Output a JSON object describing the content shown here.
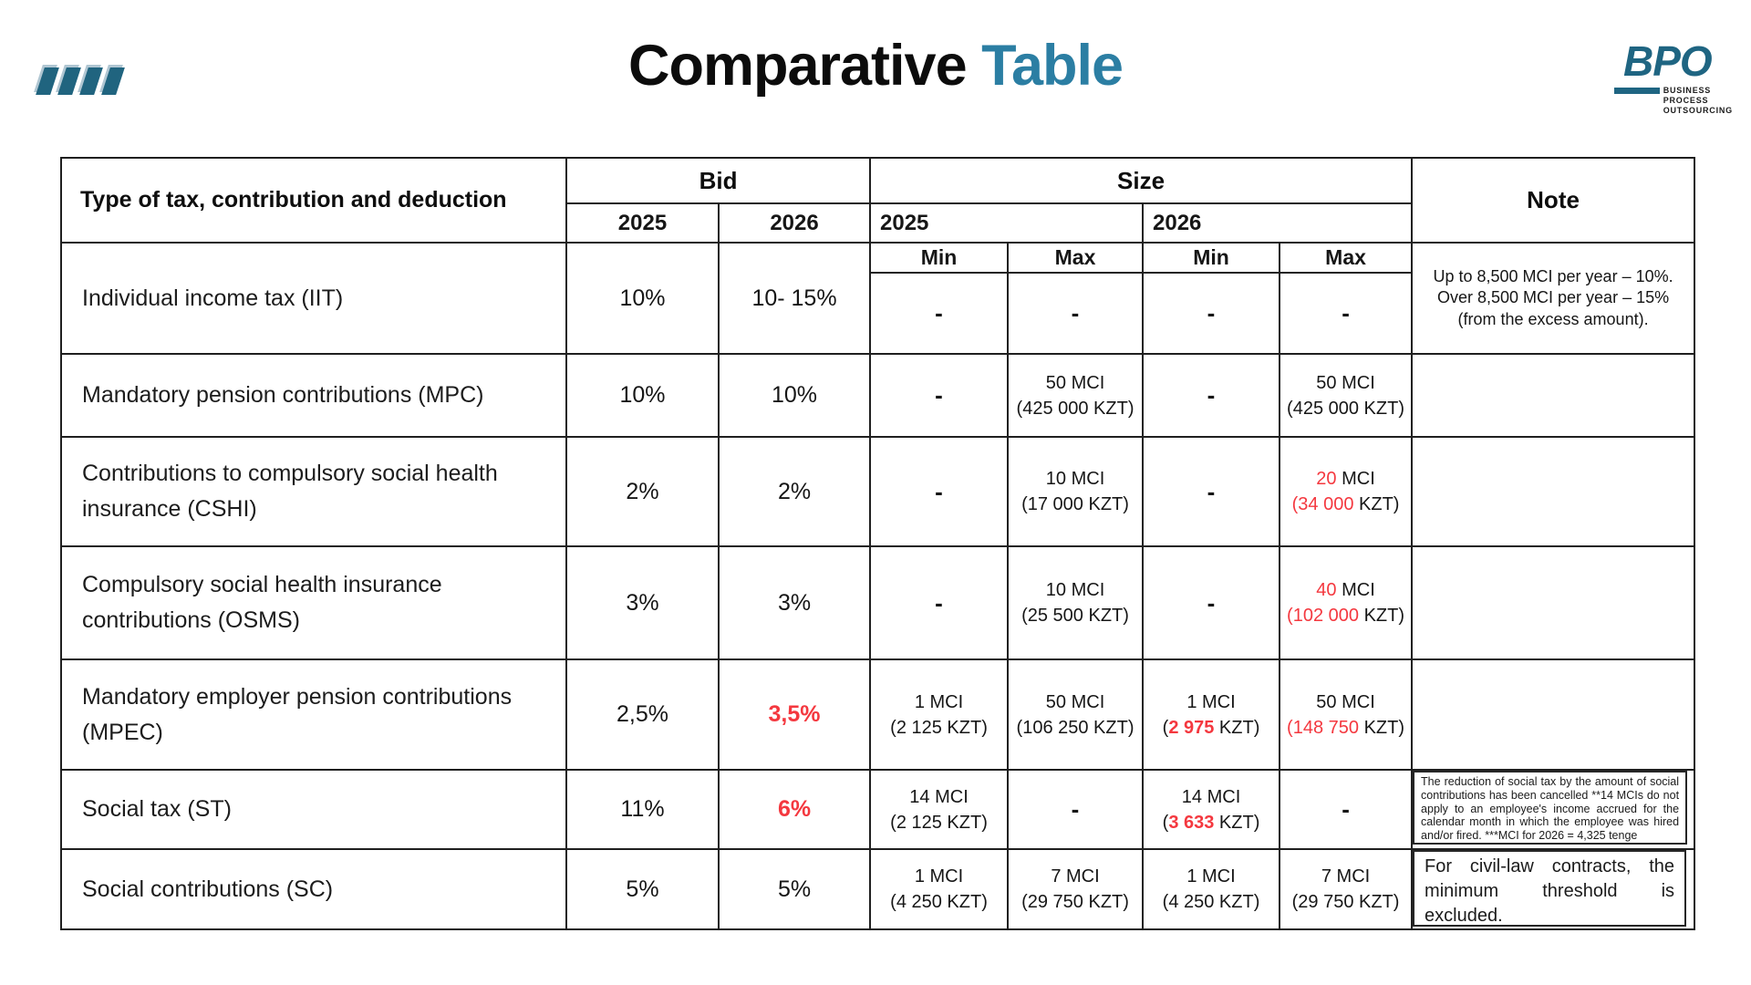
{
  "page": {
    "title_black": "Comparative",
    "title_accent": "Table"
  },
  "brand": {
    "logo_text": "BPO",
    "logo_line1": "BUSINESS",
    "logo_line2": "PROCESS",
    "logo_line3": "OUTSOURCING"
  },
  "colors": {
    "accent_teal": "#2b7ea3",
    "brand_teal": "#1f6582",
    "highlight_red": "#f4383f"
  },
  "table": {
    "headers": {
      "type": "Type of tax, contribution and deduction",
      "bid": "Bid",
      "size": "Size",
      "note": "Note",
      "bid_2025": "2025",
      "bid_2026": "2026",
      "size_2025": "2025",
      "size_2026": "2026",
      "min_1": "Min",
      "max_1": "Max",
      "min_2": "Min",
      "max_2": "Max"
    },
    "rows": [
      {
        "label": "Individual income tax (IIT)",
        "bid2025": [
          [
            {
              "t": "10%"
            }
          ]
        ],
        "bid2026": [
          [
            {
              "t": "10- 15%"
            }
          ]
        ],
        "min25": [
          [
            {
              "t": "-",
              "d": true
            }
          ]
        ],
        "max25": [
          [
            {
              "t": "-",
              "d": true
            }
          ]
        ],
        "min26": [
          [
            {
              "t": "-",
              "d": true
            }
          ]
        ],
        "max26": [
          [
            {
              "t": "-",
              "d": true
            }
          ]
        ],
        "note": "Up to 8,500 MCI per year – 10%. Over 8,500 MCI per year – 15% (from the excess amount)."
      },
      {
        "label": "Mandatory pension contributions (MPC)",
        "bid2025": [
          [
            {
              "t": "10%"
            }
          ]
        ],
        "bid2026": [
          [
            {
              "t": "10%"
            }
          ]
        ],
        "min25": [
          [
            {
              "t": "-",
              "d": true
            }
          ]
        ],
        "max25": [
          [
            {
              "t": "50 MCI"
            }
          ],
          [
            {
              "t": "(425 000 KZT)"
            }
          ]
        ],
        "min26": [
          [
            {
              "t": "-",
              "d": true
            }
          ]
        ],
        "max26": [
          [
            {
              "t": "50 MCI"
            }
          ],
          [
            {
              "t": "(425 000 KZT)"
            }
          ]
        ],
        "note": ""
      },
      {
        "label": "Contributions to compulsory social health insurance (CSHI)",
        "bid2025": [
          [
            {
              "t": "2%"
            }
          ]
        ],
        "bid2026": [
          [
            {
              "t": "2%"
            }
          ]
        ],
        "min25": [
          [
            {
              "t": "-",
              "d": true
            }
          ]
        ],
        "max25": [
          [
            {
              "t": "10 MCI"
            }
          ],
          [
            {
              "t": "(17 000 KZT)"
            }
          ]
        ],
        "min26": [
          [
            {
              "t": "-",
              "d": true
            }
          ]
        ],
        "max26": [
          [
            {
              "t": "20",
              "c": "red"
            },
            {
              "t": " MCI"
            }
          ],
          [
            {
              "t": "(34 000",
              "c": "red"
            },
            {
              "t": " KZT)"
            }
          ]
        ],
        "note": ""
      },
      {
        "label": "Compulsory social health insurance contributions (OSMS)",
        "bid2025": [
          [
            {
              "t": "3%"
            }
          ]
        ],
        "bid2026": [
          [
            {
              "t": "3%"
            }
          ]
        ],
        "min25": [
          [
            {
              "t": "-",
              "d": true
            }
          ]
        ],
        "max25": [
          [
            {
              "t": "10 MCI"
            }
          ],
          [
            {
              "t": "(25 500 KZT)"
            }
          ]
        ],
        "min26": [
          [
            {
              "t": "-",
              "d": true
            }
          ]
        ],
        "max26": [
          [
            {
              "t": "40",
              "c": "red"
            },
            {
              "t": " MCI"
            }
          ],
          [
            {
              "t": "(102 000",
              "c": "red"
            },
            {
              "t": " KZT)"
            }
          ]
        ],
        "note": ""
      },
      {
        "label": "Mandatory employer pension contributions (MPEC)",
        "bid2025": [
          [
            {
              "t": "2,5%"
            }
          ]
        ],
        "bid2026": [
          [
            {
              "t": "3,5%",
              "c": "red",
              "b": true
            }
          ]
        ],
        "min25": [
          [
            {
              "t": "1 MCI"
            }
          ],
          [
            {
              "t": "(2 125 KZT)"
            }
          ]
        ],
        "max25": [
          [
            {
              "t": "50 MCI"
            }
          ],
          [
            {
              "t": "(106 250 KZT)"
            }
          ]
        ],
        "min26": [
          [
            {
              "t": "1 MCI"
            }
          ],
          [
            {
              "t": "("
            },
            {
              "t": "2 975",
              "c": "red",
              "b": true
            },
            {
              "t": " KZT)"
            }
          ]
        ],
        "max26": [
          [
            {
              "t": "50 MCI"
            }
          ],
          [
            {
              "t": "(148 750",
              "c": "red"
            },
            {
              "t": " KZT)"
            }
          ]
        ],
        "note": ""
      },
      {
        "label": "Social tax (ST)",
        "bid2025": [
          [
            {
              "t": "11%"
            }
          ]
        ],
        "bid2026": [
          [
            {
              "t": "6%",
              "c": "red",
              "b": true
            }
          ]
        ],
        "min25": [
          [
            {
              "t": "14 MCI"
            }
          ],
          [
            {
              "t": "(2 125 KZT)"
            }
          ]
        ],
        "max25": [
          [
            {
              "t": "-",
              "d": true
            }
          ]
        ],
        "min26": [
          [
            {
              "t": "14 MCI"
            }
          ],
          [
            {
              "t": "("
            },
            {
              "t": "3 633",
              "c": "red",
              "b": true
            },
            {
              "t": " KZT)"
            }
          ]
        ],
        "max26": [
          [
            {
              "t": "-",
              "d": true
            }
          ]
        ],
        "note": "The reduction of social tax by the amount of social contributions has been cancelled **14 MCIs do not apply to an employee's income accrued for the calendar month in which the employee was hired and/or fired. ***MCI for 2026 = 4,325 tenge"
      },
      {
        "label": "Social contributions (SC)",
        "bid2025": [
          [
            {
              "t": "5%"
            }
          ]
        ],
        "bid2026": [
          [
            {
              "t": "5%"
            }
          ]
        ],
        "min25": [
          [
            {
              "t": "1 MCI"
            }
          ],
          [
            {
              "t": "(4 250 KZT)"
            }
          ]
        ],
        "max25": [
          [
            {
              "t": "7 MCI"
            }
          ],
          [
            {
              "t": "(29 750 KZT)"
            }
          ]
        ],
        "min26": [
          [
            {
              "t": "1 MCI"
            }
          ],
          [
            {
              "t": "(4 250 KZT)"
            }
          ]
        ],
        "max26": [
          [
            {
              "t": "7 MCI"
            }
          ],
          [
            {
              "t": "(29 750 KZT)"
            }
          ]
        ],
        "note": "For civil-law contracts, the minimum threshold is excluded."
      }
    ]
  }
}
